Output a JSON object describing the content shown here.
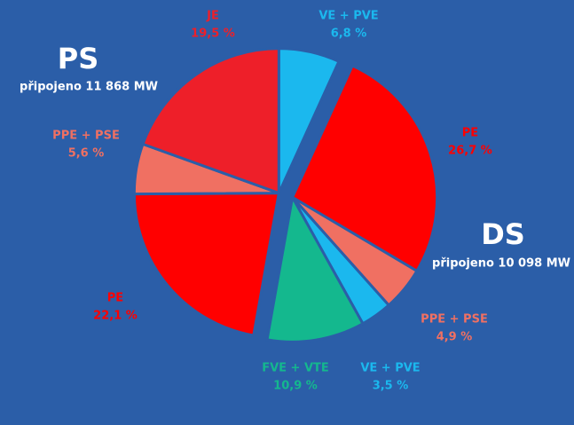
{
  "chart_data": {
    "type": "pie",
    "groups": [
      {
        "name": "DS",
        "note": "připojeno 10 098 MW",
        "categories": [
          "PE",
          "PPE + PSE",
          "VE + PVE",
          "FVE + VTE"
        ],
        "values": [
          26.7,
          4.9,
          3.5,
          10.9
        ],
        "value_labels": [
          "26,7 %",
          "4,9 %",
          "3,5 %",
          "10,9 %"
        ],
        "colors": [
          "#ff0000",
          "#f07062",
          "#1bb8ee",
          "#14b88e"
        ]
      },
      {
        "name": "PS",
        "note": "připojeno 11 868 MW",
        "categories": [
          "PE",
          "PPE + PSE",
          "JE",
          "VE + PVE"
        ],
        "values": [
          22.1,
          5.6,
          19.5,
          6.8
        ],
        "value_labels": [
          "22,1 %",
          "5,6 %",
          "19,5 %",
          "6,8 %"
        ],
        "colors": [
          "#ff0000",
          "#f07062",
          "#ee1f29",
          "#1bb8ee"
        ]
      }
    ]
  }
}
